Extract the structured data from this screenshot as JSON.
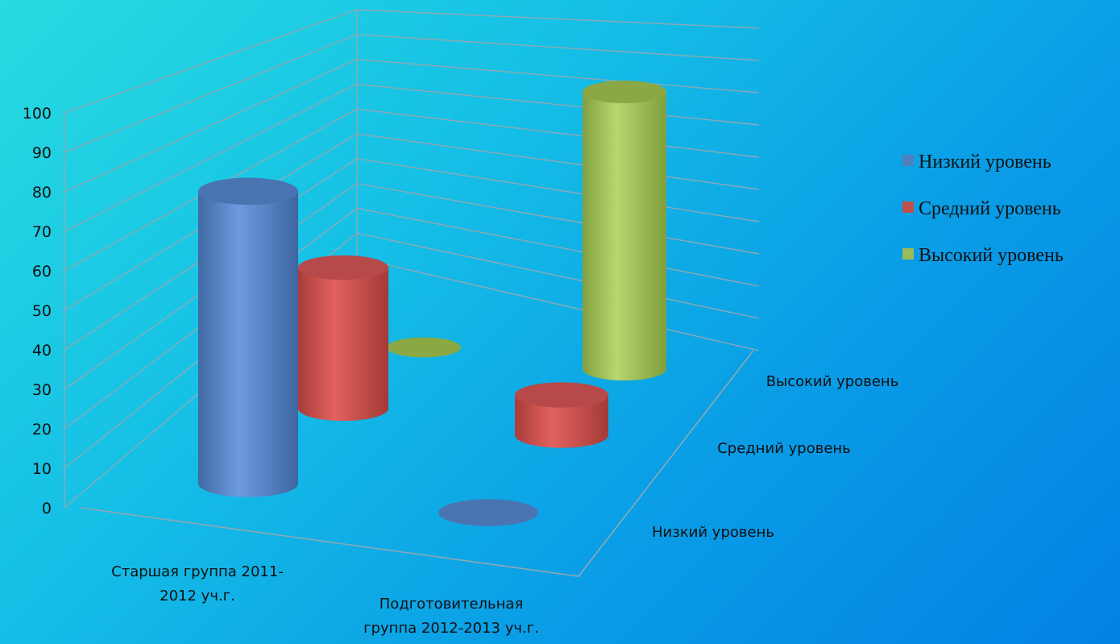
{
  "chart_data": {
    "type": "bar",
    "style": "3d-cylinder",
    "categories": [
      "Старшая группа 2011-2012 уч.г.",
      "Подготовительная группа 2012-2013 уч.г."
    ],
    "category_lines": [
      [
        "Старшая группа 2011-",
        "2012 уч.г."
      ],
      [
        "Подготовительная",
        "группа 2012-2013 уч.г."
      ]
    ],
    "series": [
      {
        "name": "Низкий уровень",
        "values": [
          62,
          0
        ],
        "color": "#4f81bd"
      },
      {
        "name": "Средний уровень",
        "values": [
          35,
          10
        ],
        "color": "#c0504d"
      },
      {
        "name": "Высокий уровень",
        "values": [
          0,
          80
        ],
        "color": "#9bbb59"
      }
    ],
    "depth_labels": [
      "Низкий уровень",
      "Средний уровень",
      "Высокий уровень"
    ],
    "ylim": [
      0,
      100
    ],
    "yticks": [
      0,
      10,
      20,
      30,
      40,
      50,
      60,
      70,
      80,
      90,
      100
    ],
    "grid": true,
    "legend": "right"
  }
}
